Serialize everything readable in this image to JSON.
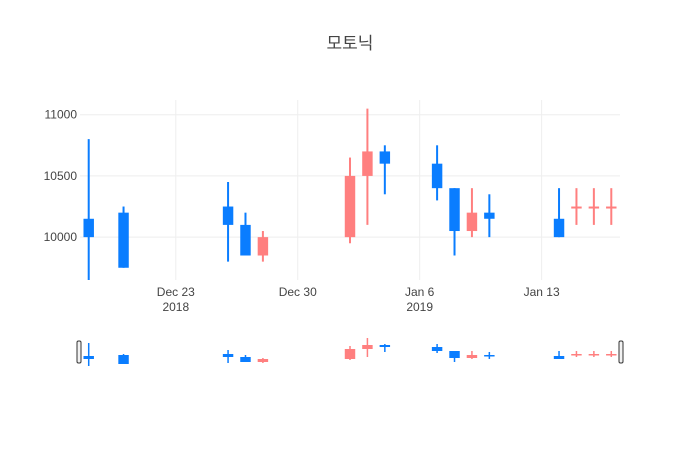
{
  "chart_data": {
    "type": "candlestick",
    "title": "모토닉",
    "x_tick_labels": [
      {
        "date": "2018-12-23",
        "label": "Dec 23",
        "sublabel": "2018"
      },
      {
        "date": "2018-12-30",
        "label": "Dec 30",
        "sublabel": ""
      },
      {
        "date": "2019-01-06",
        "label": "Jan 6",
        "sublabel": "2019"
      },
      {
        "date": "2019-01-13",
        "label": "Jan 13",
        "sublabel": ""
      }
    ],
    "y_tick_labels": [
      "10000",
      "10500",
      "11000"
    ],
    "ylim": [
      9650,
      11120
    ],
    "xlim": [
      "2018-12-17T12:00",
      "2019-01-17T12:00"
    ],
    "grid": true,
    "rangeslider": true,
    "colors": {
      "increasing": "#ff7f7f",
      "decreasing": "#0a7dff"
    },
    "candles": [
      {
        "date": "2018-12-18",
        "open": 10150,
        "high": 10800,
        "low": 9650,
        "close": 10000
      },
      {
        "date": "2018-12-20",
        "open": 10200,
        "high": 10250,
        "low": 9750,
        "close": 9750
      },
      {
        "date": "2018-12-26",
        "open": 10250,
        "high": 10450,
        "low": 9800,
        "close": 10100
      },
      {
        "date": "2018-12-27",
        "open": 10100,
        "high": 10200,
        "low": 9850,
        "close": 9850
      },
      {
        "date": "2018-12-28",
        "open": 9850,
        "high": 10050,
        "low": 9800,
        "close": 10000
      },
      {
        "date": "2019-01-02",
        "open": 10000,
        "high": 10650,
        "low": 9950,
        "close": 10500
      },
      {
        "date": "2019-01-03",
        "open": 10500,
        "high": 11050,
        "low": 10100,
        "close": 10700
      },
      {
        "date": "2019-01-04",
        "open": 10700,
        "high": 10750,
        "low": 10350,
        "close": 10600
      },
      {
        "date": "2019-01-07",
        "open": 10600,
        "high": 10750,
        "low": 10300,
        "close": 10400
      },
      {
        "date": "2019-01-08",
        "open": 10400,
        "high": 10400,
        "low": 9850,
        "close": 10050
      },
      {
        "date": "2019-01-09",
        "open": 10050,
        "high": 10400,
        "low": 10000,
        "close": 10200
      },
      {
        "date": "2019-01-10",
        "open": 10200,
        "high": 10350,
        "low": 10000,
        "close": 10150
      },
      {
        "date": "2019-01-14",
        "open": 10150,
        "high": 10400,
        "low": 10000,
        "close": 10000
      },
      {
        "date": "2019-01-15",
        "open": 10250,
        "high": 10400,
        "low": 10100,
        "close": 10250
      },
      {
        "date": "2019-01-16",
        "open": 10250,
        "high": 10400,
        "low": 10100,
        "close": 10250
      },
      {
        "date": "2019-01-17",
        "open": 10250,
        "high": 10400,
        "low": 10100,
        "close": 10250
      }
    ]
  }
}
